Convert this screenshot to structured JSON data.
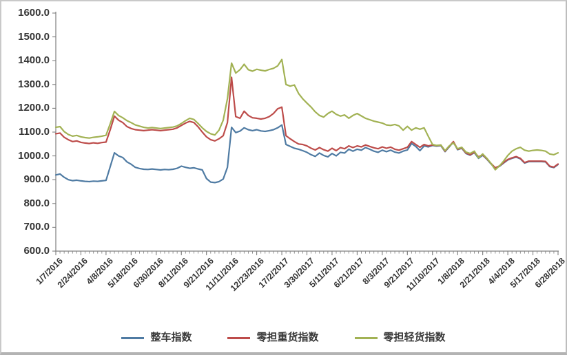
{
  "chart_data": {
    "type": "line",
    "title": "",
    "xlabel": "",
    "ylabel": "",
    "grid": false,
    "legend_position": "bottom",
    "x_label_rotation_deg": -45,
    "label_every": 6,
    "categories": [
      "1/7/2016",
      "2/24/2016",
      "4/8/2016",
      "5/18/2016",
      "6/30/2016",
      "8/11/2016",
      "9/21/2016",
      "11/11/2016",
      "12/23/2016",
      "17/2/2017",
      "3/30/2017",
      "5/11/2017",
      "6/21/2017",
      "8/3/2017",
      "9/21/2017",
      "11/10/2017",
      "1/8/2018",
      "2/21/2018",
      "4/4/2018",
      "5/17/2018",
      "6/28/2018"
    ],
    "y_axis": {
      "min": 600,
      "max": 1600,
      "step": 100,
      "tick_labels": [
        "1600.0",
        "1500.0",
        "1400.0",
        "1300.0",
        "1200.0",
        "1100.0",
        "1000.0",
        "900.0",
        "800.0",
        "700.0",
        "600.0"
      ]
    },
    "series": [
      {
        "name": "整车指数",
        "color": "#4f7ba3",
        "values": [
          920,
          924,
          910,
          900,
          896,
          898,
          895,
          893,
          892,
          894,
          893,
          895,
          897,
          955,
          1013,
          1000,
          993,
          975,
          965,
          952,
          947,
          944,
          943,
          945,
          943,
          941,
          943,
          942,
          944,
          948,
          957,
          952,
          948,
          950,
          945,
          941,
          905,
          890,
          888,
          892,
          903,
          952,
          1120,
          1098,
          1104,
          1118,
          1110,
          1106,
          1110,
          1105,
          1103,
          1106,
          1110,
          1118,
          1130,
          1048,
          1040,
          1032,
          1028,
          1022,
          1015,
          1005,
          998,
          1012,
          1002,
          996,
          1010,
          1000,
          1015,
          1012,
          1028,
          1020,
          1028,
          1024,
          1035,
          1028,
          1020,
          1015,
          1024,
          1018,
          1024,
          1016,
          1012,
          1020,
          1025,
          1052,
          1040,
          1022,
          1042,
          1038,
          1044,
          1041,
          1043,
          1018,
          1038,
          1058,
          1026,
          1032,
          1010,
          1003,
          1014,
          990,
          1003,
          986,
          966,
          948,
          956,
          970,
          983,
          990,
          995,
          988,
          970,
          976,
          976,
          976,
          976,
          975,
          955,
          951,
          964
        ]
      },
      {
        "name": "零担重货指数",
        "color": "#bd4c4a",
        "values": [
          1093,
          1096,
          1078,
          1068,
          1060,
          1063,
          1057,
          1054,
          1052,
          1055,
          1053,
          1056,
          1058,
          1110,
          1167,
          1150,
          1140,
          1123,
          1115,
          1110,
          1108,
          1106,
          1108,
          1110,
          1108,
          1106,
          1108,
          1110,
          1112,
          1118,
          1128,
          1138,
          1145,
          1140,
          1122,
          1100,
          1080,
          1068,
          1063,
          1072,
          1085,
          1140,
          1330,
          1165,
          1158,
          1188,
          1170,
          1160,
          1158,
          1155,
          1158,
          1165,
          1178,
          1198,
          1205,
          1085,
          1072,
          1060,
          1050,
          1048,
          1042,
          1032,
          1025,
          1035,
          1026,
          1020,
          1032,
          1022,
          1035,
          1030,
          1042,
          1035,
          1042,
          1038,
          1046,
          1040,
          1034,
          1030,
          1038,
          1032,
          1037,
          1028,
          1024,
          1030,
          1036,
          1060,
          1048,
          1036,
          1048,
          1042,
          1046,
          1043,
          1045,
          1020,
          1040,
          1060,
          1028,
          1034,
          1012,
          1005,
          1016,
          996,
          1005,
          988,
          968,
          950,
          958,
          972,
          985,
          992,
          997,
          990,
          972,
          978,
          978,
          978,
          978,
          977,
          957,
          953,
          966
        ]
      },
      {
        "name": "零担轻货指数",
        "color": "#a2b254",
        "values": [
          1120,
          1123,
          1102,
          1090,
          1083,
          1086,
          1080,
          1077,
          1075,
          1078,
          1080,
          1083,
          1087,
          1135,
          1187,
          1170,
          1160,
          1148,
          1140,
          1130,
          1125,
          1120,
          1117,
          1119,
          1117,
          1115,
          1117,
          1119,
          1121,
          1126,
          1136,
          1148,
          1158,
          1153,
          1136,
          1118,
          1103,
          1093,
          1088,
          1108,
          1150,
          1240,
          1390,
          1348,
          1362,
          1385,
          1362,
          1356,
          1364,
          1360,
          1357,
          1363,
          1368,
          1378,
          1405,
          1300,
          1293,
          1298,
          1262,
          1240,
          1222,
          1205,
          1185,
          1170,
          1163,
          1178,
          1188,
          1175,
          1167,
          1172,
          1158,
          1170,
          1178,
          1168,
          1158,
          1152,
          1146,
          1142,
          1138,
          1130,
          1128,
          1132,
          1126,
          1108,
          1124,
          1108,
          1118,
          1112,
          1118,
          1082,
          1048,
          1044,
          1046,
          1022,
          1042,
          1055,
          1030,
          1036,
          1016,
          1010,
          1020,
          992,
          1008,
          990,
          968,
          942,
          958,
          978,
          1002,
          1020,
          1030,
          1036,
          1024,
          1020,
          1023,
          1025,
          1023,
          1020,
          1008,
          1005,
          1013
        ]
      }
    ]
  }
}
